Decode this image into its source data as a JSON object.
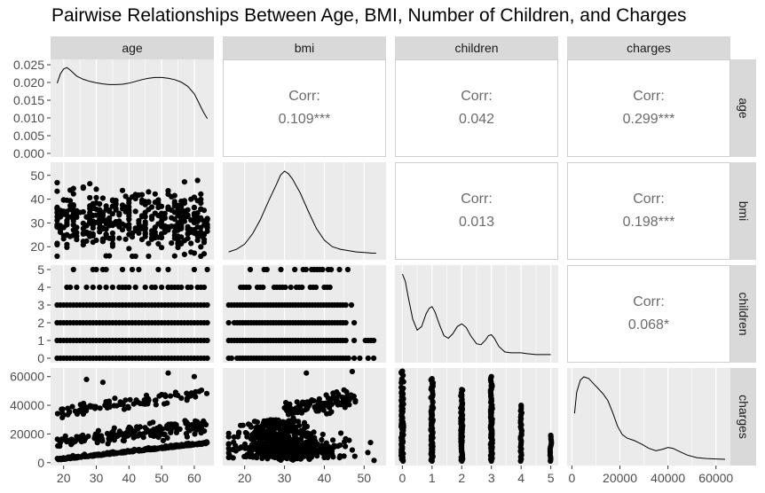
{
  "title": "Pairwise Relationships Between Age, BMI, Number of Children, and Charges",
  "variables": [
    "age",
    "bmi",
    "children",
    "charges"
  ],
  "colors": {
    "panel_bg": "#ebebeb",
    "grid": "#ffffff",
    "strip_bg": "#d9d9d9",
    "points": "#000000",
    "corr_text": "#6b6b6b"
  },
  "chart_data": {
    "type": "scatter",
    "layout": "pairs-matrix",
    "diagonal": "density",
    "upper": "correlation",
    "lower": "scatter",
    "corr_label": "Corr:",
    "correlations": [
      {
        "row": "age",
        "col": "bmi",
        "value": "0.109***"
      },
      {
        "row": "age",
        "col": "children",
        "value": "0.042"
      },
      {
        "row": "age",
        "col": "charges",
        "value": "0.299***"
      },
      {
        "row": "bmi",
        "col": "children",
        "value": "0.013"
      },
      {
        "row": "bmi",
        "col": "charges",
        "value": "0.198***"
      },
      {
        "row": "children",
        "col": "charges",
        "value": "0.068*"
      }
    ],
    "axes": {
      "age": {
        "range": [
          16,
          66
        ],
        "ticks": [
          20,
          30,
          40,
          50,
          60
        ],
        "tick_labels": [
          "20",
          "30",
          "40",
          "50",
          "60"
        ]
      },
      "bmi": {
        "range": [
          14.5,
          55.5
        ],
        "ticks": [
          20,
          30,
          40,
          50
        ],
        "tick_labels": [
          "20",
          "30",
          "40",
          "50"
        ]
      },
      "children": {
        "range": [
          -0.25,
          5.25
        ],
        "ticks": [
          0,
          1,
          2,
          3,
          4,
          5
        ],
        "tick_labels": [
          "0",
          "1",
          "2",
          "3",
          "4",
          "5"
        ]
      },
      "charges": {
        "range": [
          -2000,
          66000
        ],
        "ticks": [
          0,
          20000,
          40000,
          60000
        ],
        "tick_labels": [
          "0",
          "20000",
          "40000",
          "60000"
        ]
      }
    },
    "age_density": {
      "ylim": [
        -0.001,
        0.0265
      ],
      "ticks": [
        0.0,
        0.005,
        0.01,
        0.015,
        0.02,
        0.025
      ],
      "tick_labels": [
        "0.000",
        "0.005",
        "0.010",
        "0.015",
        "0.020",
        "0.025"
      ],
      "x": [
        18,
        19,
        20,
        21,
        22,
        24,
        26,
        28,
        30,
        32,
        34,
        36,
        38,
        40,
        42,
        44,
        46,
        48,
        50,
        52,
        54,
        56,
        58,
        60,
        61,
        62,
        63,
        64
      ],
      "y": [
        0.0198,
        0.0224,
        0.0238,
        0.0242,
        0.0235,
        0.0218,
        0.0209,
        0.0203,
        0.0199,
        0.0196,
        0.0194,
        0.0194,
        0.0195,
        0.0198,
        0.0203,
        0.0208,
        0.0212,
        0.0214,
        0.0214,
        0.0212,
        0.0208,
        0.0201,
        0.0189,
        0.0168,
        0.015,
        0.0131,
        0.0113,
        0.0098
      ]
    },
    "bmi_density": {
      "x": [
        16,
        18,
        20,
        22,
        24,
        26,
        28,
        29,
        30,
        31,
        32,
        34,
        36,
        38,
        40,
        42,
        44,
        46,
        48,
        50,
        52,
        53
      ],
      "y": [
        0.002,
        0.004,
        0.008,
        0.016,
        0.027,
        0.041,
        0.054,
        0.061,
        0.064,
        0.062,
        0.058,
        0.047,
        0.033,
        0.02,
        0.011,
        0.006,
        0.004,
        0.003,
        0.002,
        0.0015,
        0.001,
        0.001
      ]
    },
    "children_density": {
      "x": [
        0,
        0.1,
        0.2,
        0.35,
        0.5,
        0.65,
        0.8,
        0.9,
        1.0,
        1.1,
        1.25,
        1.4,
        1.55,
        1.7,
        1.85,
        2.0,
        2.15,
        2.3,
        2.5,
        2.65,
        2.8,
        2.9,
        3.0,
        3.1,
        3.25,
        3.45,
        3.65,
        3.85,
        4.0,
        4.2,
        4.5,
        4.8,
        5.0
      ],
      "y": [
        0.92,
        0.84,
        0.66,
        0.42,
        0.3,
        0.34,
        0.48,
        0.54,
        0.56,
        0.5,
        0.36,
        0.24,
        0.21,
        0.26,
        0.34,
        0.37,
        0.33,
        0.24,
        0.15,
        0.14,
        0.19,
        0.24,
        0.25,
        0.21,
        0.12,
        0.06,
        0.05,
        0.05,
        0.05,
        0.04,
        0.03,
        0.03,
        0.03
      ]
    },
    "charges_density": {
      "x": [
        1100,
        2000,
        3500,
        5000,
        7000,
        9000,
        11000,
        13000,
        15000,
        17000,
        19000,
        21000,
        23000,
        26000,
        29000,
        32000,
        35000,
        38000,
        40000,
        42000,
        45000,
        48000,
        52000,
        56000,
        60000,
        63800
      ],
      "y": [
        0.55,
        0.8,
        0.94,
        0.98,
        0.96,
        0.9,
        0.84,
        0.78,
        0.7,
        0.56,
        0.4,
        0.3,
        0.26,
        0.23,
        0.19,
        0.14,
        0.11,
        0.13,
        0.15,
        0.14,
        0.1,
        0.06,
        0.03,
        0.02,
        0.015,
        0.01
      ]
    }
  }
}
